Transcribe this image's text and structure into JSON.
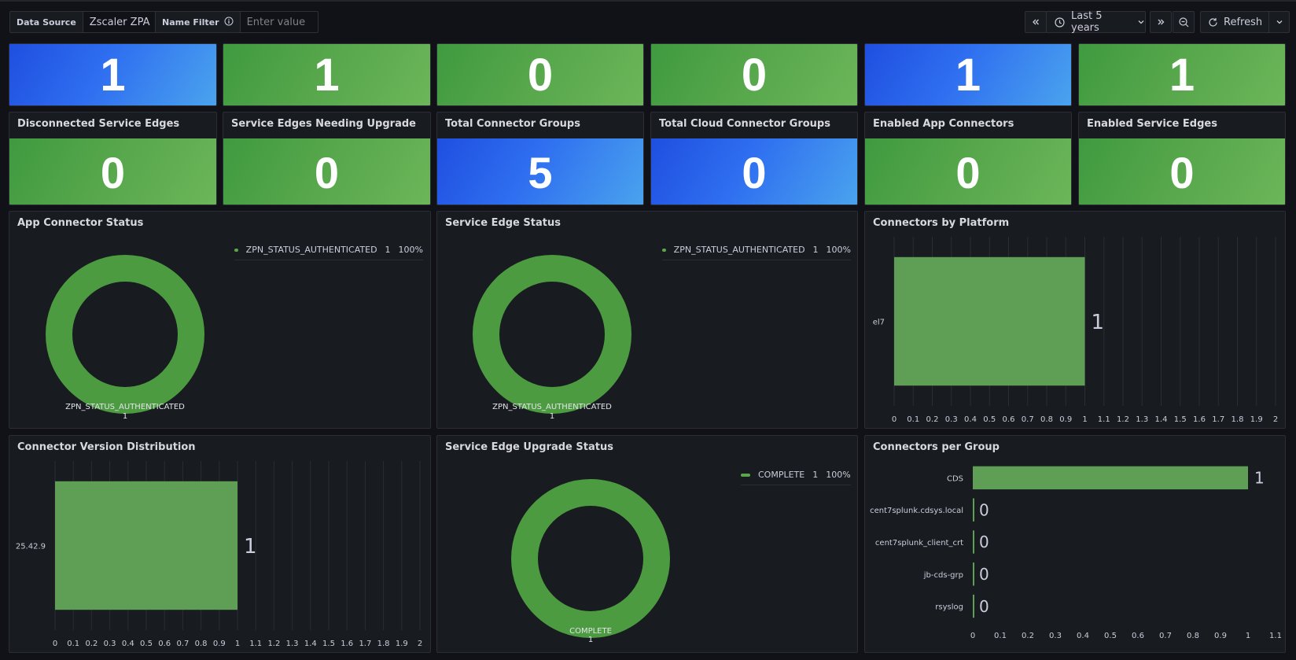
{
  "toolbar": {
    "data_source_label": "Data Source",
    "data_source_value": "Zscaler ZPA",
    "name_filter_label": "Name Filter",
    "name_filter_placeholder": "Enter value",
    "time_range": "Last 5 years",
    "refresh_label": "Refresh"
  },
  "colors": {
    "green": "#56a64b",
    "blue": "#3274d9",
    "background": "#111217",
    "panel": "#181b1f"
  },
  "top_stats": [
    {
      "value": "1",
      "color": "blue"
    },
    {
      "value": "1",
      "color": "green"
    },
    {
      "value": "0",
      "color": "green"
    },
    {
      "value": "0",
      "color": "green"
    },
    {
      "value": "1",
      "color": "blue"
    },
    {
      "value": "1",
      "color": "green"
    }
  ],
  "stats": [
    {
      "title": "Disconnected Service Edges",
      "value": "0",
      "color": "green"
    },
    {
      "title": "Service Edges Needing Upgrade",
      "value": "0",
      "color": "green"
    },
    {
      "title": "Total Connector Groups",
      "value": "5",
      "color": "blue"
    },
    {
      "title": "Total Cloud Connector Groups",
      "value": "0",
      "color": "blue"
    },
    {
      "title": "Enabled App Connectors",
      "value": "0",
      "color": "green"
    },
    {
      "title": "Enabled Service Edges",
      "value": "0",
      "color": "green"
    }
  ],
  "panels": {
    "app_connector_status": {
      "title": "App Connector Status",
      "legend": {
        "name": "ZPN_STATUS_AUTHENTICATED",
        "value": "1",
        "percent": "100%"
      },
      "slice_label": "ZPN_STATUS_AUTHENTICATED",
      "slice_value": "1"
    },
    "service_edge_status": {
      "title": "Service Edge Status",
      "legend": {
        "name": "ZPN_STATUS_AUTHENTICATED",
        "value": "1",
        "percent": "100%"
      },
      "slice_label": "ZPN_STATUS_AUTHENTICATED",
      "slice_value": "1"
    },
    "connectors_by_platform": {
      "title": "Connectors by Platform"
    },
    "connector_version_distribution": {
      "title": "Connector Version Distribution"
    },
    "service_edge_upgrade_status": {
      "title": "Service Edge Upgrade Status",
      "legend": {
        "name": "COMPLETE",
        "value": "1",
        "percent": "100%"
      },
      "slice_label": "COMPLETE",
      "slice_value": "1"
    },
    "connectors_per_group": {
      "title": "Connectors per Group"
    }
  },
  "chart_data": [
    {
      "type": "pie",
      "title": "App Connector Status",
      "categories": [
        "ZPN_STATUS_AUTHENTICATED"
      ],
      "values": [
        1
      ],
      "percents": [
        "100%"
      ],
      "donut": true
    },
    {
      "type": "pie",
      "title": "Service Edge Status",
      "categories": [
        "ZPN_STATUS_AUTHENTICATED"
      ],
      "values": [
        1
      ],
      "percents": [
        "100%"
      ],
      "donut": true
    },
    {
      "type": "bar",
      "orientation": "horizontal",
      "title": "Connectors by Platform",
      "categories": [
        "el7"
      ],
      "values": [
        1
      ],
      "xlim": [
        0,
        2
      ],
      "xticks": [
        "0",
        "0.1",
        "0.2",
        "0.3",
        "0.4",
        "0.5",
        "0.6",
        "0.7",
        "0.8",
        "0.9",
        "1",
        "1.1",
        "1.2",
        "1.3",
        "1.4",
        "1.5",
        "1.6",
        "1.7",
        "1.8",
        "1.9",
        "2"
      ],
      "grid": true
    },
    {
      "type": "bar",
      "orientation": "horizontal",
      "title": "Connector Version Distribution",
      "categories": [
        "25.42.9"
      ],
      "values": [
        1
      ],
      "xlim": [
        0,
        2
      ],
      "xticks": [
        "0",
        "0.1",
        "0.2",
        "0.3",
        "0.4",
        "0.5",
        "0.6",
        "0.7",
        "0.8",
        "0.9",
        "1",
        "1.1",
        "1.2",
        "1.3",
        "1.4",
        "1.5",
        "1.6",
        "1.7",
        "1.8",
        "1.9",
        "2"
      ],
      "grid": true
    },
    {
      "type": "pie",
      "title": "Service Edge Upgrade Status",
      "categories": [
        "COMPLETE"
      ],
      "values": [
        1
      ],
      "percents": [
        "100%"
      ],
      "donut": true
    },
    {
      "type": "bar",
      "orientation": "horizontal",
      "title": "Connectors per Group",
      "categories": [
        "CDS",
        "cent7splunk.cdsys.local",
        "cent7splunk_client_crt",
        "jb-cds-grp",
        "rsyslog"
      ],
      "values": [
        1,
        0,
        0,
        0,
        0
      ],
      "xlim": [
        0,
        1.1
      ],
      "xticks": [
        "0",
        "0.1",
        "0.2",
        "0.3",
        "0.4",
        "0.5",
        "0.6",
        "0.7",
        "0.8",
        "0.9",
        "1",
        "1.1"
      ],
      "grid": false
    }
  ]
}
